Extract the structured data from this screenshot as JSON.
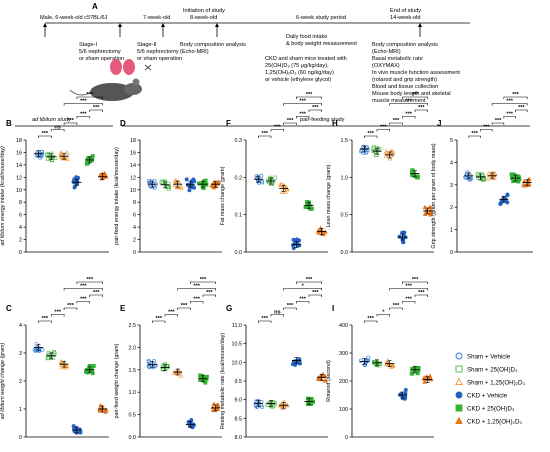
{
  "timeline": {
    "panel_label": "A",
    "labels": [
      {
        "text": "Male, 6-week-old c57BL/6J",
        "x": 40,
        "y": 19
      },
      {
        "text": "7-week-old",
        "x": 143,
        "y": 19
      },
      {
        "text": "Initiation of study",
        "x": 183,
        "y": 12
      },
      {
        "text": "8-week-old",
        "x": 190,
        "y": 19
      },
      {
        "text": "6-week study period",
        "x": 296,
        "y": 19
      },
      {
        "text": "End of study",
        "x": 390,
        "y": 12
      },
      {
        "text": "14-week-old",
        "x": 390,
        "y": 19
      }
    ],
    "notes": [
      {
        "lines": [
          "Stage-I",
          "5/6 nephrectomy",
          "or sham operation"
        ],
        "x": 79,
        "y": 46
      },
      {
        "lines": [
          "Stage-II",
          "5/6 nephrectomy",
          "or sham operation"
        ],
        "x": 137,
        "y": 46
      },
      {
        "lines": [
          "Body composition analysis",
          "(Echo-MRI)"
        ],
        "x": 180,
        "y": 46
      },
      {
        "lines": [
          "Daily food intake",
          "& body weight measurement"
        ],
        "x": 286,
        "y": 38
      },
      {
        "lines": [
          "CKD and sham mice treated with",
          "25(OH)D₃ (75 μg/kg/day),",
          "1,25(OH)₂D₃ (60 ng/kg/day)",
          "or vehicle (ethylene glycol)"
        ],
        "x": 265,
        "y": 60
      },
      {
        "lines": [
          "Body composition analysis",
          "(Echo-MRI)",
          "Basal metabolic rate",
          "(OXYMAX)",
          "In vivo muscle function assessment",
          "(rotarod and grip strength)",
          "Blood and tissue collection",
          "Mouse body length and skeletal",
          "muscle measurement"
        ],
        "x": 372,
        "y": 46
      }
    ]
  },
  "headers": {
    "ad_libitum": "ad libitum study",
    "pair_feeding": "pair-feeding study"
  },
  "legend": [
    {
      "label": "Sham + Vehicle",
      "color": "#2f7bd8",
      "marker": "circle",
      "filled": false
    },
    {
      "label": "Sham + 25(OH)D₃",
      "color": "#4db848",
      "marker": "square",
      "filled": false
    },
    {
      "label": "Sham + 1,25(OH)₂D₃",
      "color": "#f39432",
      "marker": "triangle",
      "filled": false
    },
    {
      "label": "CKD + Vehicle",
      "color": "#2362c4",
      "marker": "circle",
      "filled": true
    },
    {
      "label": "CKD + 25(OH)D₃",
      "color": "#33b233",
      "marker": "square",
      "filled": true
    },
    {
      "label": "CKD + 1,25(OH)₂D₃",
      "color": "#e8761c",
      "marker": "triangle",
      "filled": true
    }
  ],
  "chart_data": [
    {
      "id": "B",
      "type": "scatter",
      "ylabel": "ad libitum energy intake (kcal/mouse/day)",
      "ylim": [
        0,
        18
      ],
      "yticks": [
        0,
        2,
        4,
        6,
        8,
        10,
        12,
        14,
        16,
        18
      ],
      "groups": [
        "Sham + Vehicle",
        "Sham + 25(OH)D₃",
        "Sham + 1,25(OH)₂D₃",
        "CKD + Vehicle",
        "CKD + 25(OH)D₃",
        "CKD + 1,25(OH)₂D₃"
      ],
      "means": [
        15.8,
        15.3,
        15.4,
        11.2,
        14.8,
        12.1
      ],
      "sig": [
        {
          "a": 1,
          "b": 2,
          "text": "***"
        },
        {
          "a": 2,
          "b": 3,
          "text": "ns"
        },
        {
          "a": 3,
          "b": 4,
          "text": "***"
        },
        {
          "a": 4,
          "b": 5,
          "text": "***"
        },
        {
          "a": 5,
          "b": 6,
          "text": "***"
        },
        {
          "a": 3,
          "b": 6,
          "text": "***"
        },
        {
          "a": 4,
          "b": 6,
          "text": "***"
        }
      ]
    },
    {
      "id": "C",
      "type": "scatter",
      "ylabel": "ad libitum weight change (gram)",
      "ylim": [
        0,
        4
      ],
      "yticks": [
        0,
        1,
        2,
        3,
        4
      ],
      "groups": [
        "Sham + Vehicle",
        "Sham + 25(OH)D₃",
        "Sham + 1,25(OH)₂D₃",
        "CKD + Vehicle",
        "CKD + 25(OH)D₃",
        "CKD + 1,25(OH)₂D₃"
      ],
      "means": [
        3.2,
        2.9,
        2.6,
        0.25,
        2.4,
        1.0
      ],
      "sig": [
        {
          "a": 1,
          "b": 2,
          "text": "***"
        },
        {
          "a": 2,
          "b": 3,
          "text": "***"
        },
        {
          "a": 3,
          "b": 4,
          "text": "***"
        },
        {
          "a": 4,
          "b": 5,
          "text": "***"
        },
        {
          "a": 5,
          "b": 6,
          "text": "***"
        },
        {
          "a": 3,
          "b": 6,
          "text": "***"
        },
        {
          "a": 4,
          "b": 6,
          "text": "***"
        }
      ]
    },
    {
      "id": "D",
      "type": "scatter",
      "ylabel": "pair-feed energy intake (kcal/mouse/day)",
      "ylim": [
        0,
        18
      ],
      "yticks": [
        0,
        2,
        4,
        6,
        8,
        10,
        12,
        14,
        16,
        18
      ],
      "groups": [
        "Sham + Vehicle",
        "Sham + 25(OH)D₃",
        "Sham + 1,25(OH)₂D₃",
        "CKD + Vehicle",
        "CKD + 25(OH)D₃",
        "CKD + 1,25(OH)₂D₃"
      ],
      "means": [
        10.9,
        10.8,
        10.9,
        10.8,
        10.9,
        10.9
      ],
      "sig": []
    },
    {
      "id": "E",
      "type": "scatter",
      "ylabel": "pair-feed weight change (gram)",
      "ylim": [
        0,
        2.5
      ],
      "yticks": [
        0.0,
        0.5,
        1.0,
        1.5,
        2.0,
        2.5
      ],
      "groups": [
        "Sham + Vehicle",
        "Sham + 25(OH)D₃",
        "Sham + 1,25(OH)₂D₃",
        "CKD + Vehicle",
        "CKD + 25(OH)D₃",
        "CKD + 1,25(OH)₂D₃"
      ],
      "means": [
        1.62,
        1.55,
        1.45,
        0.28,
        1.3,
        0.65
      ],
      "sig": [
        {
          "a": 1,
          "b": 2,
          "text": "***"
        },
        {
          "a": 2,
          "b": 3,
          "text": "***"
        },
        {
          "a": 3,
          "b": 4,
          "text": "***"
        },
        {
          "a": 4,
          "b": 5,
          "text": "***"
        },
        {
          "a": 5,
          "b": 6,
          "text": "***"
        },
        {
          "a": 3,
          "b": 6,
          "text": "***"
        },
        {
          "a": 4,
          "b": 6,
          "text": "***"
        }
      ]
    },
    {
      "id": "F",
      "type": "scatter",
      "ylabel": "Fat mass change (gram)",
      "ylim": [
        0,
        0.3
      ],
      "yticks": [
        0.0,
        0.1,
        0.2,
        0.3
      ],
      "groups": [
        "Sham + Vehicle",
        "Sham + 25(OH)D₃",
        "Sham + 1,25(OH)₂D₃",
        "CKD + Vehicle",
        "CKD + 25(OH)D₃",
        "CKD + 1,25(OH)₂D₃"
      ],
      "means": [
        0.195,
        0.19,
        0.17,
        0.02,
        0.125,
        0.055
      ],
      "sig": [
        {
          "a": 1,
          "b": 2,
          "text": "***"
        },
        {
          "a": 2,
          "b": 3,
          "text": "***"
        },
        {
          "a": 3,
          "b": 4,
          "text": "***"
        },
        {
          "a": 4,
          "b": 5,
          "text": "***"
        },
        {
          "a": 5,
          "b": 6,
          "text": "***"
        },
        {
          "a": 3,
          "b": 6,
          "text": "***"
        },
        {
          "a": 4,
          "b": 6,
          "text": "***"
        }
      ]
    },
    {
      "id": "G",
      "type": "scatter",
      "ylabel": "Resting metabolic rate (kcal/mouse/day)",
      "ylim": [
        8,
        11
      ],
      "yticks": [
        8.0,
        8.5,
        9.0,
        9.5,
        10.0,
        10.5,
        11.0
      ],
      "groups": [
        "Sham + Vehicle",
        "Sham + 25(OH)D₃",
        "Sham + 1,25(OH)₂D₃",
        "CKD + Vehicle",
        "CKD + 25(OH)D₃",
        "CKD + 1,25(OH)₂D₃"
      ],
      "means": [
        8.9,
        8.9,
        8.85,
        10.05,
        8.95,
        9.6
      ],
      "sig": [
        {
          "a": 1,
          "b": 2,
          "text": "***"
        },
        {
          "a": 2,
          "b": 3,
          "text": "ns"
        },
        {
          "a": 3,
          "b": 4,
          "text": "***"
        },
        {
          "a": 4,
          "b": 5,
          "text": "***"
        },
        {
          "a": 5,
          "b": 6,
          "text": "***"
        },
        {
          "a": 3,
          "b": 6,
          "text": "*"
        },
        {
          "a": 4,
          "b": 6,
          "text": "***"
        }
      ]
    },
    {
      "id": "H",
      "type": "scatter",
      "ylabel": "Lean mass change (gram)",
      "ylim": [
        0,
        1.5
      ],
      "yticks": [
        0.0,
        0.5,
        1.0,
        1.5
      ],
      "groups": [
        "Sham + Vehicle",
        "Sham + 25(OH)D₃",
        "Sham + 1,25(OH)₂D₃",
        "CKD + Vehicle",
        "CKD + 25(OH)D₃",
        "CKD + 1,25(OH)₂D₃"
      ],
      "means": [
        1.38,
        1.35,
        1.3,
        0.2,
        1.05,
        0.55
      ],
      "sig": [
        {
          "a": 1,
          "b": 2,
          "text": "***"
        },
        {
          "a": 2,
          "b": 3,
          "text": "***"
        },
        {
          "a": 3,
          "b": 4,
          "text": "***"
        },
        {
          "a": 4,
          "b": 5,
          "text": "***"
        },
        {
          "a": 5,
          "b": 6,
          "text": "***"
        },
        {
          "a": 3,
          "b": 6,
          "text": "***"
        },
        {
          "a": 4,
          "b": 6,
          "text": "***"
        }
      ]
    },
    {
      "id": "I",
      "type": "scatter",
      "ylabel": "Rotarod (second)",
      "ylim": [
        0,
        400
      ],
      "yticks": [
        0,
        100,
        200,
        300,
        400
      ],
      "groups": [
        "Sham + Vehicle",
        "Sham + 25(OH)D₃",
        "Sham + 1,25(OH)₂D₃",
        "CKD + Vehicle",
        "CKD + 25(OH)D₃",
        "CKD + 1,25(OH)₂D₃"
      ],
      "means": [
        270,
        265,
        262,
        150,
        240,
        205
      ],
      "sig": [
        {
          "a": 1,
          "b": 2,
          "text": "***"
        },
        {
          "a": 2,
          "b": 3,
          "text": "*"
        },
        {
          "a": 3,
          "b": 4,
          "text": "***"
        },
        {
          "a": 4,
          "b": 5,
          "text": "***"
        },
        {
          "a": 5,
          "b": 6,
          "text": "***"
        },
        {
          "a": 3,
          "b": 6,
          "text": "***"
        },
        {
          "a": 4,
          "b": 6,
          "text": "***"
        }
      ]
    },
    {
      "id": "J",
      "type": "scatter",
      "ylabel": "Grip strength (gram per gram of body mass)",
      "ylim": [
        0,
        5
      ],
      "yticks": [
        0,
        1,
        2,
        3,
        4,
        5
      ],
      "groups": [
        "Sham + Vehicle",
        "Sham + 25(OH)D₃",
        "Sham + 1,25(OH)₂D₃",
        "CKD + Vehicle",
        "CKD + 25(OH)D₃",
        "CKD + 1,25(OH)₂D₃"
      ],
      "means": [
        3.4,
        3.35,
        3.4,
        2.35,
        3.3,
        3.1
      ],
      "sig": [
        {
          "a": 1,
          "b": 2,
          "text": "***"
        },
        {
          "a": 2,
          "b": 3,
          "text": "***"
        },
        {
          "a": 3,
          "b": 4,
          "text": "***"
        },
        {
          "a": 4,
          "b": 5,
          "text": "***"
        },
        {
          "a": 5,
          "b": 6,
          "text": "***"
        },
        {
          "a": 3,
          "b": 6,
          "text": "***"
        },
        {
          "a": 4,
          "b": 6,
          "text": "***"
        }
      ]
    }
  ]
}
